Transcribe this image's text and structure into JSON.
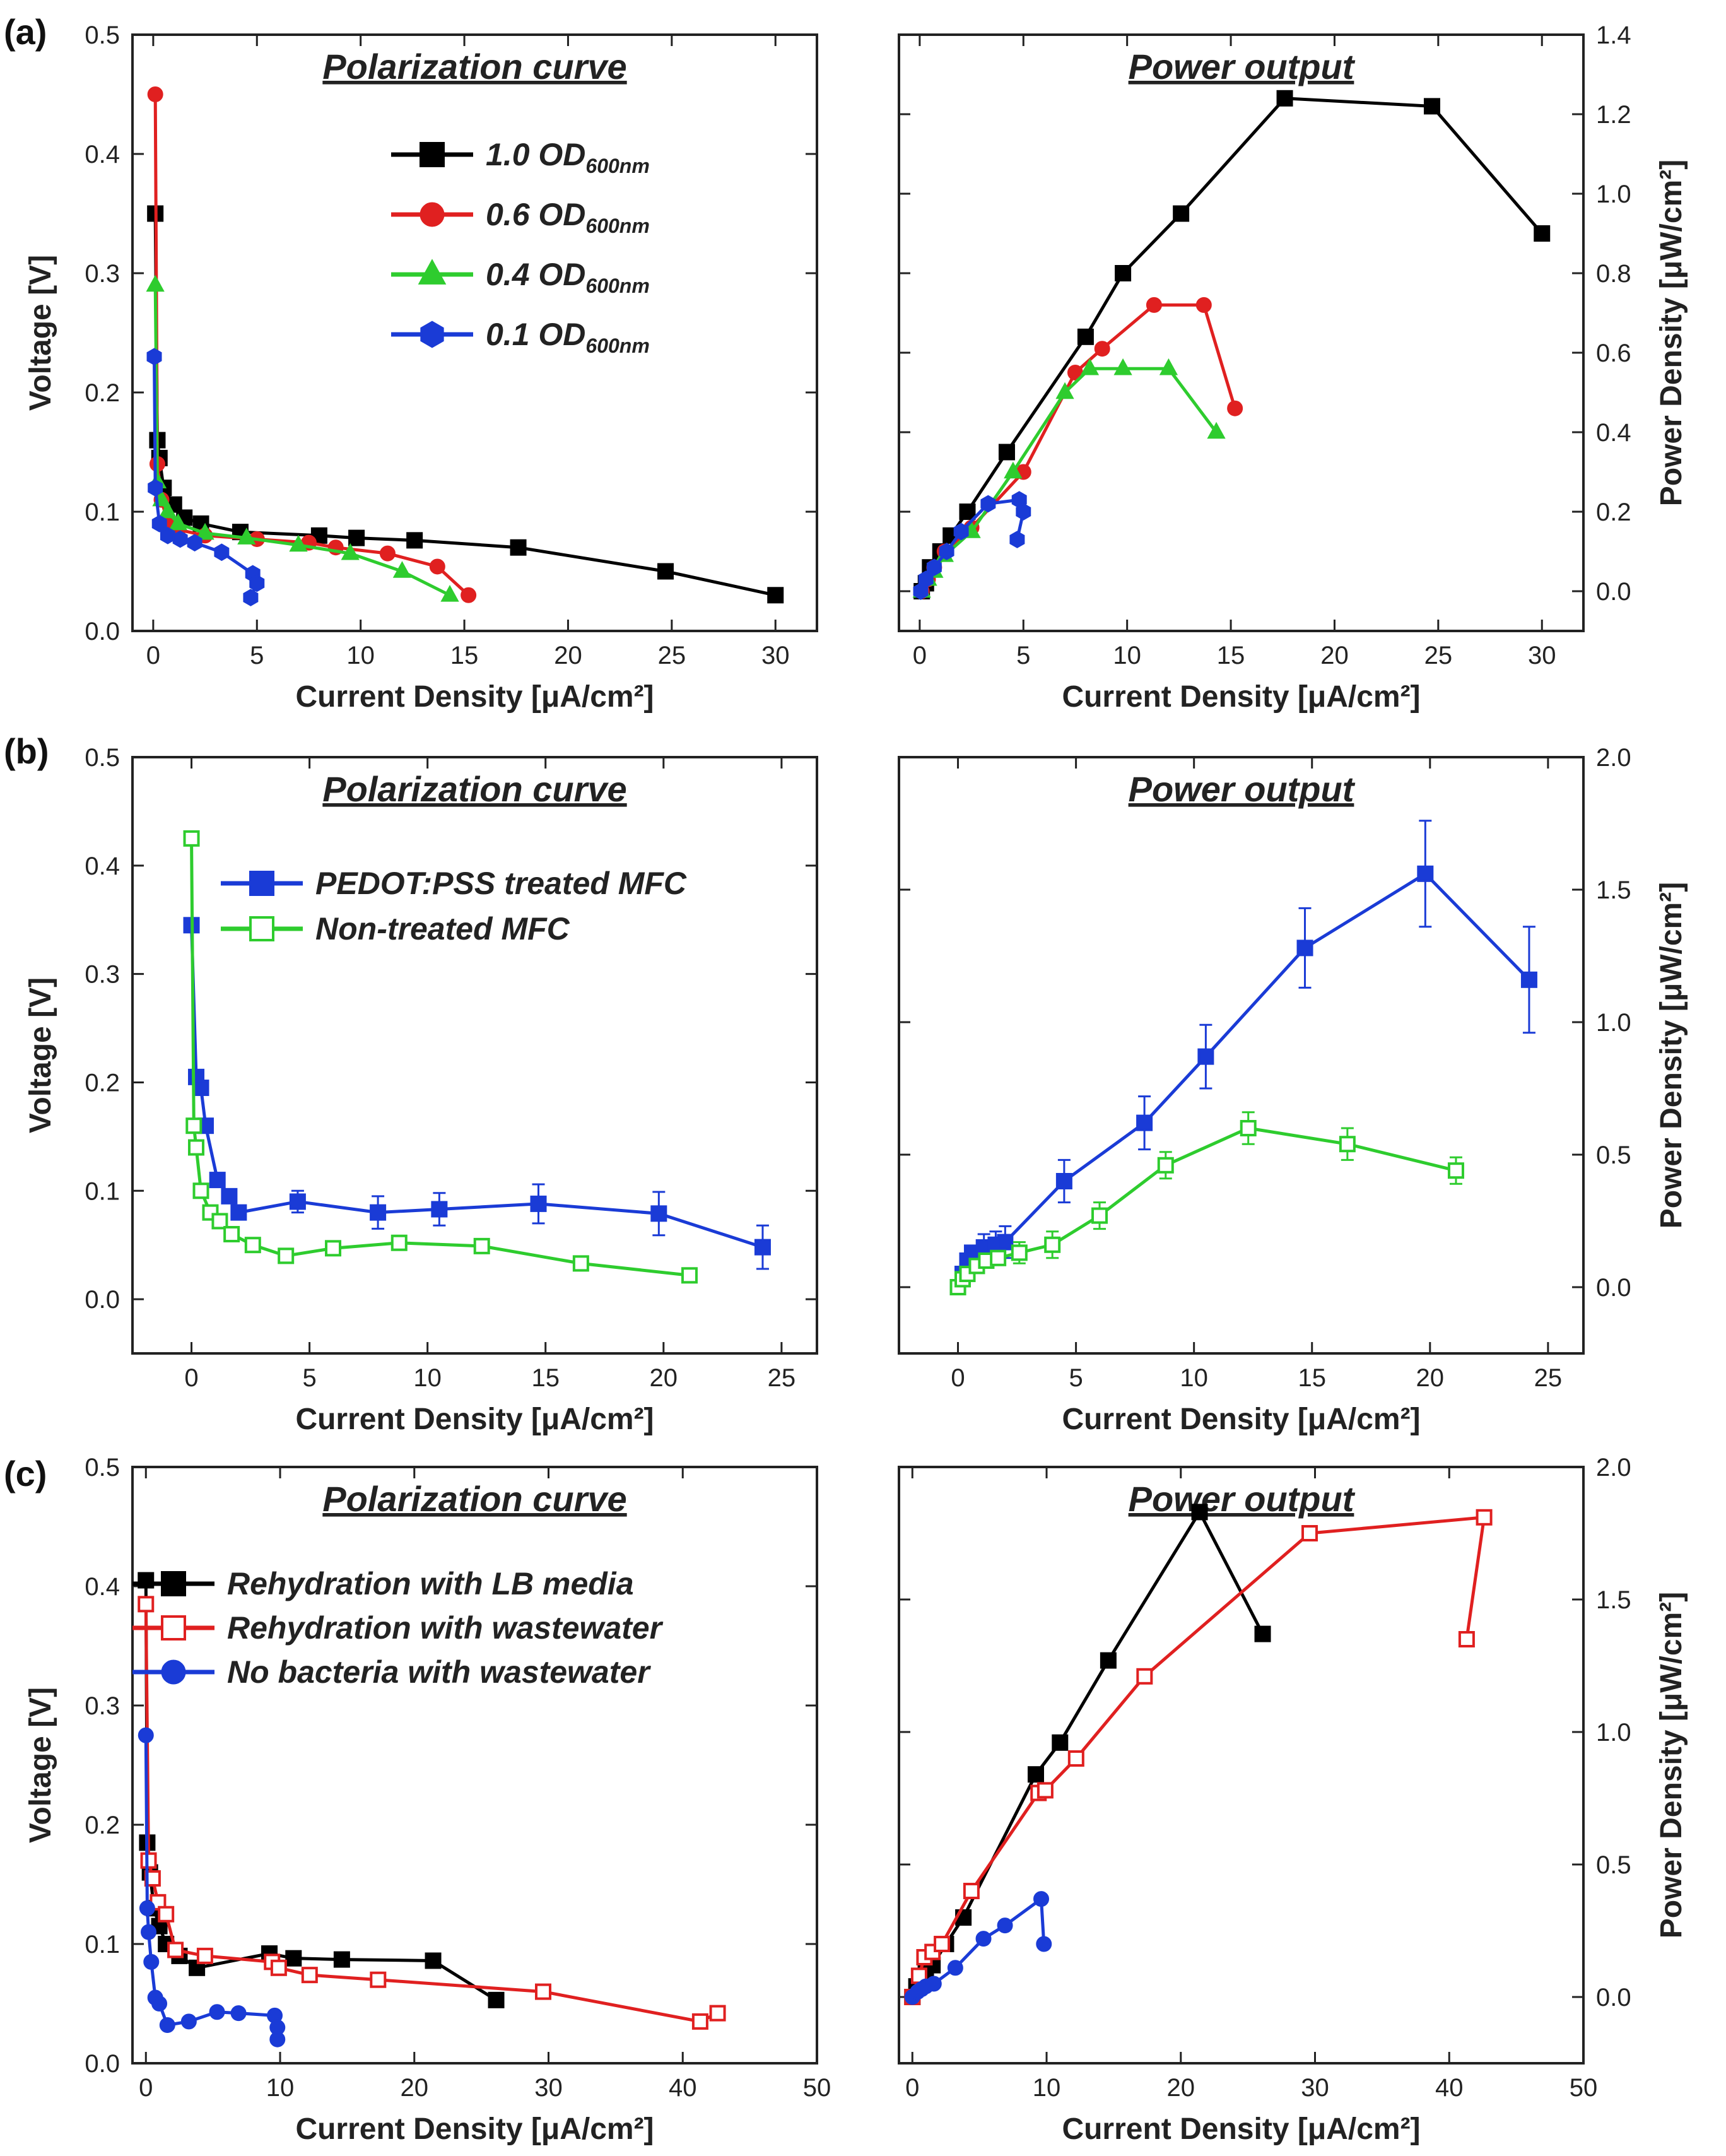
{
  "figure": {
    "panel_labels": [
      "(a)",
      "(b)",
      "(c)"
    ]
  },
  "chart_data": [
    {
      "id": "a-pol",
      "type": "line",
      "title": "Polarization curve",
      "xlabel": "Current Density [μA/cm²]",
      "ylabel": "Voltage [V]",
      "xlim": [
        -1,
        32
      ],
      "ylim": [
        0,
        0.5
      ],
      "xticks": [
        0,
        5,
        10,
        15,
        20,
        25,
        30
      ],
      "yticks": [
        0.0,
        0.1,
        0.2,
        0.3,
        0.4,
        0.5
      ],
      "legend_position": "top-right",
      "series": [
        {
          "name": "1.0 OD600nm",
          "color": "#000000",
          "marker": "square-filled",
          "x": [
            0.1,
            0.2,
            0.3,
            0.5,
            1.0,
            1.5,
            2.3,
            4.2,
            8.0,
            9.8,
            12.6,
            17.6,
            24.7,
            30.0
          ],
          "y": [
            0.35,
            0.16,
            0.145,
            0.12,
            0.106,
            0.095,
            0.09,
            0.083,
            0.08,
            0.078,
            0.076,
            0.07,
            0.05,
            0.03
          ]
        },
        {
          "name": "0.6 OD600nm",
          "color": "#e02020",
          "marker": "circle-filled",
          "x": [
            0.1,
            0.2,
            0.4,
            0.7,
            1.2,
            2.5,
            5.0,
            7.5,
            8.8,
            11.3,
            13.7,
            15.2
          ],
          "y": [
            0.45,
            0.14,
            0.11,
            0.09,
            0.085,
            0.08,
            0.077,
            0.074,
            0.07,
            0.065,
            0.054,
            0.03
          ]
        },
        {
          "name": "0.4 OD600nm",
          "color": "#2ecc2e",
          "marker": "triangle-filled",
          "x": [
            0.1,
            0.2,
            0.4,
            0.7,
            1.2,
            2.5,
            4.5,
            7.0,
            9.5,
            12.0,
            14.3
          ],
          "y": [
            0.29,
            0.125,
            0.11,
            0.1,
            0.09,
            0.082,
            0.078,
            0.072,
            0.065,
            0.05,
            0.03
          ]
        },
        {
          "name": "0.1 OD600nm",
          "color": "#1a3bd6",
          "marker": "hexagon-filled",
          "x": [
            0.05,
            0.1,
            0.3,
            0.7,
            1.3,
            2.0,
            3.3,
            4.8,
            5.0,
            4.7
          ],
          "y": [
            0.23,
            0.12,
            0.09,
            0.08,
            0.077,
            0.074,
            0.066,
            0.048,
            0.04,
            0.028
          ]
        }
      ]
    },
    {
      "id": "a-pow",
      "type": "line",
      "title": "Power output",
      "xlabel": "Current Density [μA/cm²]",
      "ylabel": "Power Density [μW/cm²]",
      "xlim": [
        -1,
        32
      ],
      "ylim": [
        -0.1,
        1.4
      ],
      "xticks": [
        0,
        5,
        10,
        15,
        20,
        25,
        30
      ],
      "yticks": [
        0.0,
        0.2,
        0.4,
        0.6,
        0.8,
        1.0,
        1.2,
        1.4
      ],
      "series": [
        {
          "name": "1.0 OD600nm",
          "color": "#000000",
          "marker": "square-filled",
          "x": [
            0.1,
            0.3,
            0.5,
            1.0,
            1.5,
            2.3,
            4.2,
            8.0,
            9.8,
            12.6,
            17.6,
            24.7,
            30.0
          ],
          "y": [
            0.0,
            0.02,
            0.06,
            0.1,
            0.14,
            0.2,
            0.35,
            0.64,
            0.8,
            0.95,
            1.24,
            1.22,
            0.9
          ]
        },
        {
          "name": "0.6 OD600nm",
          "color": "#e02020",
          "marker": "circle-filled",
          "x": [
            0.1,
            0.4,
            0.7,
            1.2,
            2.5,
            5.0,
            7.5,
            8.8,
            11.3,
            13.7,
            15.2
          ],
          "y": [
            0.0,
            0.03,
            0.06,
            0.1,
            0.16,
            0.3,
            0.55,
            0.61,
            0.72,
            0.72,
            0.46
          ]
        },
        {
          "name": "0.4 OD600nm",
          "color": "#2ecc2e",
          "marker": "triangle-filled",
          "x": [
            0.1,
            0.4,
            0.7,
            1.2,
            2.5,
            4.5,
            7.0,
            8.2,
            9.8,
            12.0,
            14.3
          ],
          "y": [
            0.0,
            0.03,
            0.05,
            0.09,
            0.15,
            0.3,
            0.5,
            0.56,
            0.56,
            0.56,
            0.4
          ]
        },
        {
          "name": "0.1 OD600nm",
          "color": "#1a3bd6",
          "marker": "hexagon-filled",
          "x": [
            0.05,
            0.3,
            0.7,
            1.3,
            2.0,
            3.3,
            4.8,
            5.0,
            4.7
          ],
          "y": [
            0.0,
            0.03,
            0.06,
            0.1,
            0.15,
            0.22,
            0.23,
            0.2,
            0.13
          ]
        }
      ]
    },
    {
      "id": "b-pol",
      "type": "line",
      "title": "Polarization curve",
      "xlabel": "Current Density [μA/cm²]",
      "ylabel": "Voltage [V]",
      "xlim": [
        -2.5,
        26.5
      ],
      "ylim": [
        -0.05,
        0.5
      ],
      "xticks": [
        0,
        5,
        10,
        15,
        20,
        25
      ],
      "yticks": [
        0.0,
        0.1,
        0.2,
        0.3,
        0.4,
        0.5
      ],
      "legend_position": "top-right",
      "series": [
        {
          "name": "PEDOT:PSS treated MFC",
          "color": "#1a3bd6",
          "marker": "square-filled",
          "x": [
            0.0,
            0.2,
            0.4,
            0.6,
            1.1,
            1.6,
            2.0,
            4.5,
            7.9,
            10.5,
            14.7,
            19.8,
            24.2
          ],
          "y": [
            0.345,
            0.205,
            0.195,
            0.16,
            0.11,
            0.095,
            0.08,
            0.09,
            0.08,
            0.083,
            0.088,
            0.079,
            0.048
          ],
          "err": [
            0,
            0.005,
            0.005,
            0.005,
            0.006,
            0.006,
            0.006,
            0.01,
            0.015,
            0.015,
            0.018,
            0.02,
            0.02
          ]
        },
        {
          "name": "Non-treated MFC",
          "color": "#2ecc2e",
          "marker": "square-open",
          "x": [
            0.0,
            0.1,
            0.2,
            0.4,
            0.8,
            1.2,
            1.7,
            2.6,
            4.0,
            6.0,
            8.8,
            12.3,
            16.5,
            21.1
          ],
          "y": [
            0.425,
            0.16,
            0.14,
            0.1,
            0.08,
            0.072,
            0.06,
            0.05,
            0.04,
            0.047,
            0.052,
            0.049,
            0.033,
            0.022
          ],
          "err": [
            0,
            0,
            0,
            0,
            0,
            0,
            0,
            0,
            0,
            0,
            0.005,
            0.005,
            0.006,
            0.006
          ]
        }
      ]
    },
    {
      "id": "b-pow",
      "type": "line",
      "title": "Power output",
      "xlabel": "Current Density [μA/cm²]",
      "ylabel": "Power Density [μW/cm²]",
      "xlim": [
        -2.5,
        26.5
      ],
      "ylim": [
        -0.25,
        2.0
      ],
      "xticks": [
        0,
        5,
        10,
        15,
        20,
        25
      ],
      "yticks": [
        0.0,
        0.5,
        1.0,
        1.5,
        2.0
      ],
      "series": [
        {
          "name": "PEDOT:PSS treated MFC",
          "color": "#1a3bd6",
          "marker": "square-filled",
          "x": [
            0.0,
            0.2,
            0.4,
            0.6,
            1.1,
            1.6,
            2.0,
            4.5,
            7.9,
            10.5,
            14.7,
            19.8,
            24.2
          ],
          "y": [
            0.0,
            0.05,
            0.1,
            0.13,
            0.15,
            0.16,
            0.17,
            0.4,
            0.62,
            0.87,
            1.28,
            1.56,
            1.16
          ],
          "err": [
            0,
            0,
            0,
            0,
            0.05,
            0.05,
            0.06,
            0.08,
            0.1,
            0.12,
            0.15,
            0.2,
            0.2
          ]
        },
        {
          "name": "Non-treated MFC",
          "color": "#2ecc2e",
          "marker": "square-open",
          "x": [
            0.0,
            0.2,
            0.4,
            0.8,
            1.2,
            1.7,
            2.6,
            4.0,
            6.0,
            8.8,
            12.3,
            16.5,
            21.1
          ],
          "y": [
            0.0,
            0.03,
            0.05,
            0.08,
            0.1,
            0.11,
            0.13,
            0.16,
            0.27,
            0.46,
            0.6,
            0.54,
            0.44
          ],
          "err": [
            0,
            0,
            0,
            0,
            0,
            0,
            0.04,
            0.05,
            0.05,
            0.05,
            0.06,
            0.06,
            0.05
          ]
        }
      ]
    },
    {
      "id": "c-pol",
      "type": "line",
      "title": "Polarization curve",
      "xlabel": "Current Density [μA/cm²]",
      "ylabel": "Voltage [V]",
      "xlim": [
        -1,
        50
      ],
      "ylim": [
        0,
        0.5
      ],
      "xticks": [
        0,
        10,
        20,
        30,
        40,
        50
      ],
      "yticks": [
        0.0,
        0.1,
        0.2,
        0.3,
        0.4,
        0.5
      ],
      "legend_position": "top-right",
      "series": [
        {
          "name": "Rehydration with LB media",
          "color": "#000000",
          "marker": "square-filled",
          "x": [
            0.0,
            0.1,
            0.3,
            0.6,
            1.0,
            1.5,
            2.5,
            3.8,
            9.2,
            11.0,
            14.6,
            21.4,
            26.1
          ],
          "y": [
            0.405,
            0.185,
            0.16,
            0.13,
            0.115,
            0.1,
            0.09,
            0.08,
            0.092,
            0.088,
            0.087,
            0.086,
            0.053
          ],
          "err": []
        },
        {
          "name": "Rehydration with wastewater",
          "color": "#e02020",
          "marker": "square-open",
          "x": [
            0.0,
            0.2,
            0.5,
            0.9,
            1.5,
            2.2,
            4.4,
            9.4,
            9.9,
            12.2,
            17.3,
            29.6,
            41.3,
            42.6
          ],
          "y": [
            0.385,
            0.17,
            0.155,
            0.135,
            0.125,
            0.095,
            0.09,
            0.085,
            0.08,
            0.074,
            0.07,
            0.06,
            0.035,
            0.042
          ],
          "err": []
        },
        {
          "name": "No bacteria with wastewater",
          "color": "#1a3bd6",
          "marker": "circle-filled",
          "x": [
            0.0,
            0.1,
            0.2,
            0.4,
            0.7,
            1.0,
            1.6,
            3.2,
            5.3,
            6.9,
            9.6,
            9.8,
            9.8
          ],
          "y": [
            0.275,
            0.13,
            0.11,
            0.085,
            0.055,
            0.05,
            0.032,
            0.035,
            0.043,
            0.042,
            0.04,
            0.03,
            0.02
          ],
          "err": []
        }
      ]
    },
    {
      "id": "c-pow",
      "type": "line",
      "title": "Power output",
      "xlabel": "Current Density [μA/cm²]",
      "ylabel": "Power Density [μW/cm²]",
      "xlim": [
        -1,
        50
      ],
      "ylim": [
        -0.25,
        2.0
      ],
      "xticks": [
        0,
        10,
        20,
        30,
        40,
        50
      ],
      "yticks": [
        0.0,
        0.5,
        1.0,
        1.5,
        2.0
      ],
      "series": [
        {
          "name": "Rehydration with LB media",
          "color": "#000000",
          "marker": "square-filled",
          "x": [
            0.0,
            0.3,
            0.6,
            1.0,
            1.5,
            2.5,
            3.8,
            9.2,
            11.0,
            14.6,
            21.4,
            26.1
          ],
          "y": [
            0.0,
            0.04,
            0.07,
            0.1,
            0.12,
            0.2,
            0.3,
            0.84,
            0.96,
            1.27,
            1.83,
            1.37
          ],
          "err": []
        },
        {
          "name": "Rehydration with wastewater",
          "color": "#e02020",
          "marker": "square-open",
          "x": [
            0.0,
            0.5,
            0.9,
            1.5,
            2.2,
            4.4,
            9.4,
            9.9,
            12.2,
            17.3,
            29.6,
            42.6,
            41.3
          ],
          "y": [
            0.0,
            0.08,
            0.15,
            0.17,
            0.2,
            0.4,
            0.77,
            0.78,
            0.9,
            1.21,
            1.75,
            1.81,
            1.35
          ],
          "err": []
        },
        {
          "name": "No bacteria with wastewater",
          "color": "#1a3bd6",
          "marker": "circle-filled",
          "x": [
            0.0,
            0.4,
            0.7,
            1.0,
            1.6,
            3.2,
            5.3,
            6.9,
            9.6,
            9.8
          ],
          "y": [
            0.0,
            0.02,
            0.03,
            0.04,
            0.05,
            0.11,
            0.22,
            0.27,
            0.37,
            0.2
          ],
          "err": []
        }
      ]
    }
  ]
}
